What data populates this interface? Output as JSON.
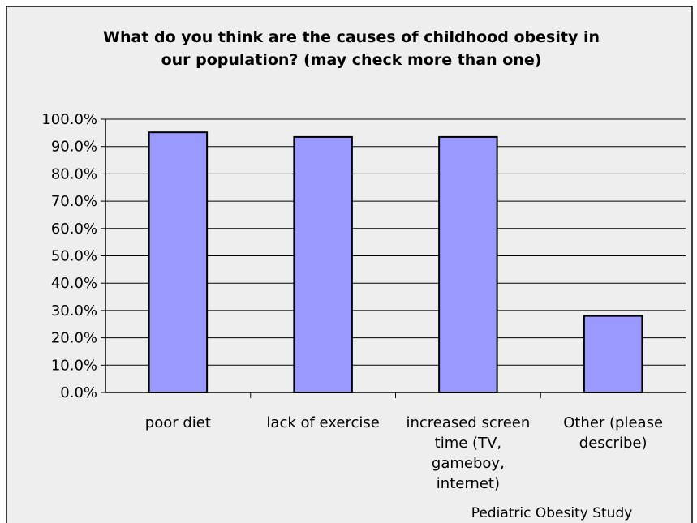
{
  "chart_data": {
    "type": "bar",
    "title": "What do you think are the causes of childhood obesity in our population? (may check more than one)",
    "title_lines": [
      "What do you think are the causes of childhood obesity in",
      "our population? (may check more than one)"
    ],
    "categories": [
      "poor diet",
      "lack of exercise",
      "increased screen time (TV, gameboy, internet)",
      "Other (please describe)"
    ],
    "category_lines": [
      [
        "poor diet"
      ],
      [
        "lack of exercise"
      ],
      [
        "increased screen",
        "time (TV,",
        "gameboy,",
        "internet)"
      ],
      [
        "Other (please",
        "describe)"
      ]
    ],
    "values": [
      95.2,
      93.5,
      93.5,
      28.0
    ],
    "ylim": [
      0,
      100
    ],
    "ytick_step": 10,
    "ytick_labels": [
      "0.0%",
      "10.0%",
      "20.0%",
      "30.0%",
      "40.0%",
      "50.0%",
      "60.0%",
      "70.0%",
      "80.0%",
      "90.0%",
      "100.0%"
    ],
    "xlabel": "",
    "ylabel": "",
    "grid": true,
    "legend": "none",
    "footer": "Pediatric Obesity Study",
    "colors": {
      "bar_fill": "#9999ff",
      "bar_stroke": "#000000",
      "background": "#eeeeee",
      "plot_background": "#eeeeee",
      "gridline": "#000000"
    }
  }
}
